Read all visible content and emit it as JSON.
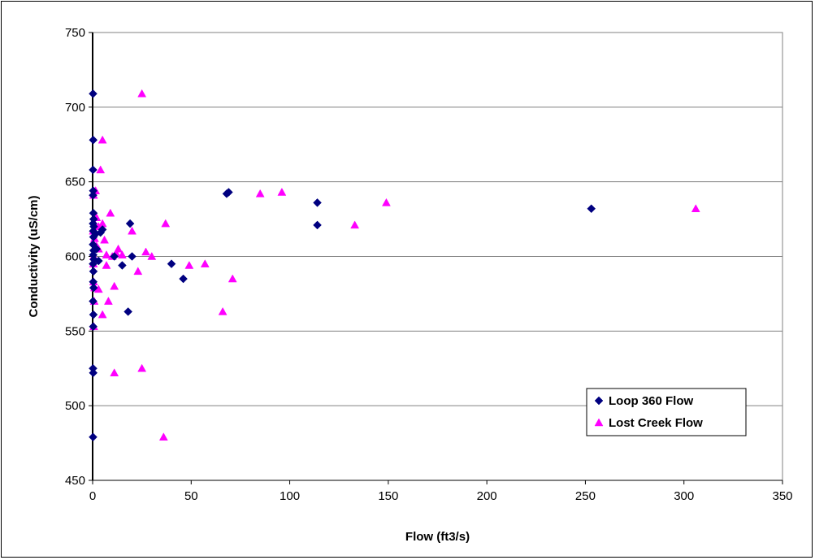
{
  "chart_data": {
    "type": "scatter",
    "title": "",
    "xlabel": "Flow (ft3/s)",
    "ylabel": "Conductivity (uS/cm)",
    "xlim": [
      0,
      350
    ],
    "ylim": [
      450,
      750
    ],
    "x_ticks": [
      0,
      50,
      100,
      150,
      200,
      250,
      300,
      350
    ],
    "y_ticks": [
      450,
      500,
      550,
      600,
      650,
      700,
      750
    ],
    "x_tick_labels": [
      "0",
      "50",
      "100",
      "150",
      "200",
      "250",
      "300",
      "350"
    ],
    "y_tick_labels": [
      "450",
      "500",
      "550",
      "600",
      "650",
      "700",
      "750"
    ],
    "grid": "horizontal",
    "legend_position": "bottom-right",
    "series": [
      {
        "name": "Loop 360 Flow",
        "marker": "diamond",
        "color": "#000080",
        "points": [
          [
            0.2,
            709
          ],
          [
            0.3,
            678
          ],
          [
            0.2,
            658
          ],
          [
            0.3,
            644
          ],
          [
            0.2,
            641
          ],
          [
            0.4,
            629
          ],
          [
            0.5,
            625
          ],
          [
            0.2,
            622
          ],
          [
            0.6,
            620
          ],
          [
            0.3,
            617
          ],
          [
            0.4,
            613
          ],
          [
            0.2,
            608
          ],
          [
            0.5,
            604
          ],
          [
            0.3,
            601
          ],
          [
            0.6,
            598
          ],
          [
            0.2,
            595
          ],
          [
            0.4,
            590
          ],
          [
            0.3,
            583
          ],
          [
            0.5,
            579
          ],
          [
            0.2,
            570
          ],
          [
            0.4,
            561
          ],
          [
            0.3,
            553
          ],
          [
            0.2,
            525
          ],
          [
            0.3,
            522
          ],
          [
            0.2,
            479
          ],
          [
            1.5,
            615
          ],
          [
            2,
            605
          ],
          [
            3,
            597
          ],
          [
            5,
            618
          ],
          [
            4,
            616
          ],
          [
            11,
            600
          ],
          [
            15,
            594
          ],
          [
            18,
            563
          ],
          [
            19,
            622
          ],
          [
            20,
            600
          ],
          [
            40,
            595
          ],
          [
            46,
            585
          ],
          [
            68,
            642
          ],
          [
            69,
            643
          ],
          [
            114,
            636
          ],
          [
            114,
            621
          ],
          [
            253,
            632
          ]
        ]
      },
      {
        "name": "Lost Creek Flow",
        "marker": "triangle",
        "color": "#ff00ff",
        "points": [
          [
            25,
            709
          ],
          [
            5,
            678
          ],
          [
            4,
            658
          ],
          [
            1.5,
            644
          ],
          [
            0.5,
            641
          ],
          [
            2,
            626
          ],
          [
            1,
            622
          ],
          [
            3,
            620
          ],
          [
            5,
            622
          ],
          [
            9,
            629
          ],
          [
            0.3,
            617
          ],
          [
            1,
            612
          ],
          [
            6,
            611
          ],
          [
            2,
            607
          ],
          [
            3,
            605
          ],
          [
            0.5,
            600
          ],
          [
            7,
            601
          ],
          [
            10,
            600
          ],
          [
            12,
            602
          ],
          [
            13,
            605
          ],
          [
            15,
            601
          ],
          [
            20,
            617
          ],
          [
            27,
            603
          ],
          [
            30,
            600
          ],
          [
            37,
            622
          ],
          [
            0.4,
            595
          ],
          [
            7,
            594
          ],
          [
            23,
            590
          ],
          [
            49,
            594
          ],
          [
            57,
            595
          ],
          [
            0.5,
            583
          ],
          [
            1,
            579
          ],
          [
            3,
            578
          ],
          [
            11,
            580
          ],
          [
            71,
            585
          ],
          [
            0.8,
            570
          ],
          [
            8,
            570
          ],
          [
            5,
            561
          ],
          [
            66,
            563
          ],
          [
            0.6,
            553
          ],
          [
            11,
            522
          ],
          [
            25,
            525
          ],
          [
            36,
            479
          ],
          [
            85,
            642
          ],
          [
            96,
            643
          ],
          [
            149,
            636
          ],
          [
            133,
            621
          ],
          [
            306,
            632
          ]
        ]
      }
    ]
  }
}
